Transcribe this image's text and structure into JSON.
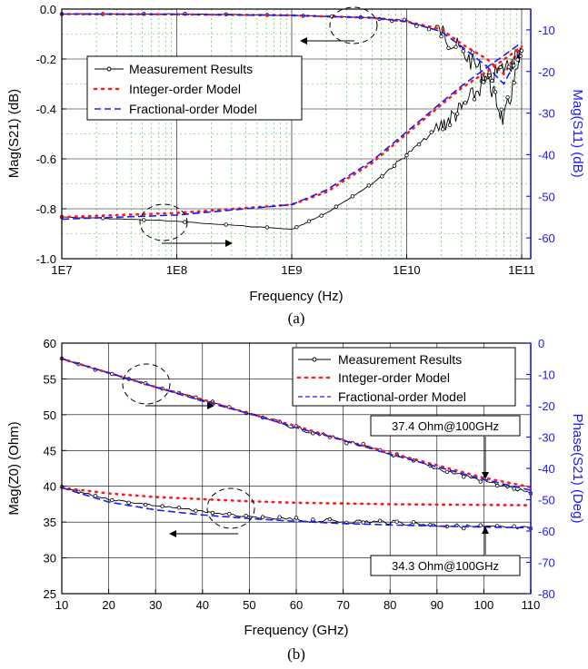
{
  "chart_data": [
    {
      "type": "line",
      "caption": "(a)",
      "xlabel": "Frequency (Hz)",
      "ylabel": "Mag(S21) (dB)",
      "y2label": "Mag(S11) (dB)",
      "xscale": "log",
      "xlim": [
        10000000,
        120000000000
      ],
      "ylim": [
        -1.0,
        0.0
      ],
      "y2lim": [
        -65,
        -5
      ],
      "xticks": [
        {
          "v": 10000000,
          "label": "1E7"
        },
        {
          "v": 100000000,
          "label": "1E8"
        },
        {
          "v": 1000000000,
          "label": "1E9"
        },
        {
          "v": 10000000000,
          "label": "1E10"
        },
        {
          "v": 100000000000,
          "label": "1E11"
        }
      ],
      "yticks": [
        0.0,
        -0.2,
        -0.4,
        -0.6,
        -0.8,
        -1.0
      ],
      "yticklabels": [
        "0.0",
        "-0.2",
        "-0.4",
        "-0.6",
        "-0.8",
        "-1.0"
      ],
      "y2ticks": [
        -10,
        -20,
        -30,
        -40,
        -50,
        -60
      ],
      "y2ticklabels": [
        "-10",
        "-20",
        "-30",
        "-40",
        "-50",
        "-60"
      ],
      "grid": true,
      "legend_position": "upper-left",
      "legend": [
        "Measurement Results",
        "Integer-order Model",
        "Fractional-order Model"
      ],
      "series": [
        {
          "name": "Measurement Results",
          "axis": "y",
          "color": "#000000",
          "style": "solid-markers",
          "x": [
            10000000,
            100000000,
            1000000000,
            5000000000,
            10000000000,
            20000000000,
            30000000000,
            50000000000,
            70000000000,
            100000000000
          ],
          "y": [
            -0.02,
            -0.02,
            -0.025,
            -0.035,
            -0.05,
            -0.09,
            -0.17,
            -0.27,
            -0.45,
            -0.18
          ]
        },
        {
          "name": "Integer-order Model",
          "axis": "y",
          "color": "#ff1a1a",
          "style": "dotted",
          "x": [
            10000000,
            100000000,
            1000000000,
            5000000000,
            10000000000,
            20000000000,
            30000000000,
            50000000000,
            70000000000,
            100000000000
          ],
          "y": [
            -0.02,
            -0.021,
            -0.025,
            -0.035,
            -0.05,
            -0.08,
            -0.14,
            -0.2,
            -0.26,
            -0.15
          ]
        },
        {
          "name": "Fractional-order Model",
          "axis": "y",
          "color": "#1a1aff",
          "style": "dashed",
          "x": [
            10000000,
            100000000,
            1000000000,
            5000000000,
            10000000000,
            20000000000,
            30000000000,
            50000000000,
            70000000000,
            100000000000
          ],
          "y": [
            -0.02,
            -0.021,
            -0.025,
            -0.035,
            -0.05,
            -0.09,
            -0.15,
            -0.23,
            -0.3,
            -0.16
          ]
        },
        {
          "name": "Measurement Results",
          "axis": "y2",
          "color": "#000000",
          "style": "solid-markers",
          "x": [
            10000000,
            100000000,
            1000000000,
            2000000000,
            5000000000,
            10000000000,
            20000000000,
            30000000000,
            50000000000,
            80000000000,
            100000000000
          ],
          "y": [
            -55,
            -56,
            -58,
            -54,
            -47,
            -40,
            -33,
            -29,
            -22,
            -18,
            -15
          ]
        },
        {
          "name": "Integer-order Model",
          "axis": "y2",
          "color": "#ff1a1a",
          "style": "dotted",
          "x": [
            10000000,
            100000000,
            1000000000,
            2000000000,
            5000000000,
            10000000000,
            20000000000,
            30000000000,
            50000000000,
            80000000000,
            100000000000
          ],
          "y": [
            -55,
            -54,
            -52,
            -49,
            -42,
            -35,
            -28,
            -24,
            -20,
            -16,
            -14
          ]
        },
        {
          "name": "Fractional-order Model",
          "axis": "y2",
          "color": "#1a1aff",
          "style": "dashed",
          "x": [
            10000000,
            100000000,
            1000000000,
            2000000000,
            5000000000,
            10000000000,
            20000000000,
            30000000000,
            50000000000,
            80000000000,
            100000000000
          ],
          "y": [
            -55.5,
            -54.5,
            -52,
            -48.5,
            -41.5,
            -34.5,
            -27.5,
            -23.5,
            -19,
            -15,
            -13
          ]
        }
      ]
    },
    {
      "type": "line",
      "caption": "(b)",
      "xlabel": "Frequency (GHz)",
      "ylabel": "Mag(Z0) (Ohm)",
      "y2label": "Phase(S21) (Deg)",
      "xlim": [
        10,
        110
      ],
      "ylim": [
        25,
        60
      ],
      "y2lim": [
        -80,
        0
      ],
      "xticks": [
        10,
        20,
        30,
        40,
        50,
        60,
        70,
        80,
        90,
        100,
        110
      ],
      "xticklabels": [
        "10",
        "20",
        "30",
        "40",
        "50",
        "60",
        "70",
        "80",
        "90",
        "100",
        "110"
      ],
      "yticks": [
        25,
        30,
        35,
        40,
        45,
        50,
        55,
        60
      ],
      "yticklabels": [
        "25",
        "30",
        "35",
        "40",
        "45",
        "50",
        "55",
        "60"
      ],
      "y2ticks": [
        0,
        -10,
        -20,
        -30,
        -40,
        -50,
        -60,
        -70,
        -80
      ],
      "y2ticklabels": [
        "0",
        "-10",
        "-20",
        "-30",
        "-40",
        "-50",
        "-60",
        "-70",
        "-80"
      ],
      "grid": true,
      "legend_position": "upper-right",
      "legend": [
        "Measurement Results",
        "Integer-order Model",
        "Fractional-order Model"
      ],
      "annotations": [
        "37.4 Ohm@100GHz",
        "34.3 Ohm@100GHz"
      ],
      "series": [
        {
          "name": "Measurement Results",
          "axis": "y2",
          "color": "#000000",
          "style": "solid-markers",
          "x": [
            10,
            20,
            30,
            40,
            50,
            60,
            70,
            80,
            90,
            100,
            110
          ],
          "y": [
            -5,
            -9.5,
            -14,
            -18,
            -22.5,
            -27,
            -31,
            -35.5,
            -40,
            -44,
            -48
          ]
        },
        {
          "name": "Integer-order Model",
          "axis": "y2",
          "color": "#ff1a1a",
          "style": "dotted",
          "x": [
            10,
            20,
            30,
            40,
            50,
            60,
            70,
            80,
            90,
            100,
            110
          ],
          "y": [
            -5,
            -9.5,
            -14,
            -18,
            -22.5,
            -26.5,
            -31,
            -35,
            -39,
            -43,
            -46
          ]
        },
        {
          "name": "Fractional-order Model",
          "axis": "y2",
          "color": "#1a1aff",
          "style": "dashed",
          "x": [
            10,
            20,
            30,
            40,
            50,
            60,
            70,
            80,
            90,
            100,
            110
          ],
          "y": [
            -5,
            -9.5,
            -14,
            -18.5,
            -22.5,
            -27,
            -31,
            -35.5,
            -39.5,
            -43.5,
            -47
          ]
        },
        {
          "name": "Measurement Results",
          "axis": "y",
          "color": "#000000",
          "style": "solid-markers",
          "x": [
            10,
            20,
            30,
            40,
            50,
            60,
            70,
            80,
            90,
            100,
            110
          ],
          "y": [
            39.8,
            38.2,
            37.3,
            36.5,
            35.7,
            35.3,
            35.1,
            35.0,
            34.6,
            34.3,
            34.1
          ]
        },
        {
          "name": "Integer-order Model",
          "axis": "y",
          "color": "#ff1a1a",
          "style": "dotted",
          "x": [
            10,
            20,
            30,
            40,
            50,
            60,
            70,
            80,
            90,
            100,
            110
          ],
          "y": [
            39.8,
            39.0,
            38.5,
            38.2,
            37.9,
            37.7,
            37.6,
            37.5,
            37.45,
            37.4,
            37.35
          ]
        },
        {
          "name": "Fractional-order Model",
          "axis": "y",
          "color": "#1a1aff",
          "style": "dashed",
          "x": [
            10,
            20,
            30,
            40,
            50,
            60,
            70,
            80,
            90,
            100,
            110
          ],
          "y": [
            39.8,
            37.8,
            36.7,
            36.0,
            35.5,
            35.1,
            34.8,
            34.6,
            34.45,
            34.3,
            34.2
          ]
        }
      ]
    }
  ]
}
